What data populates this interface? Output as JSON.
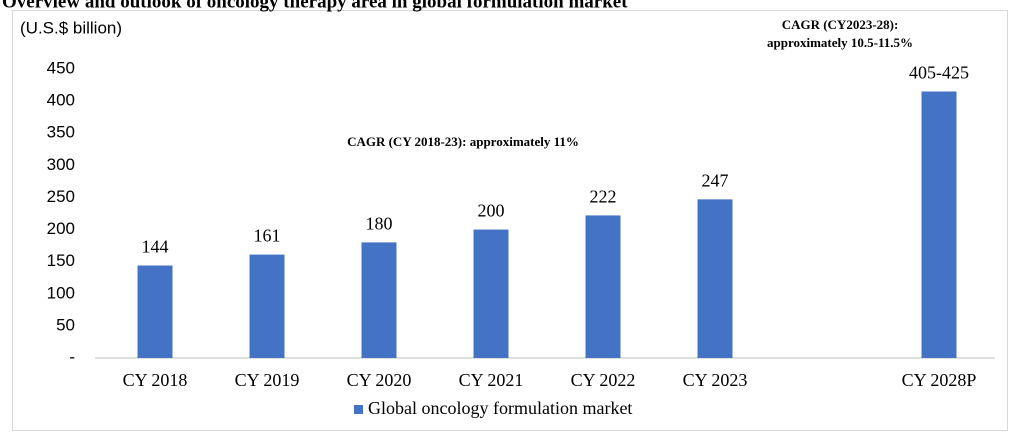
{
  "chart_data": {
    "type": "bar",
    "title": "Overview and outlook of oncology therapy area in global formulation market",
    "y_label": "(U.S.$ billion)",
    "annotations": [
      "CAGR (CY 2018-23): approximately 11%",
      "CAGR (CY2023-28):",
      "approximately 10.5-11.5%"
    ],
    "categories": [
      "CY 2018",
      "CY 2019",
      "CY 2020",
      "CY 2021",
      "CY 2022",
      "CY 2023",
      null,
      "CY 2028P"
    ],
    "series": [
      {
        "name": "Global oncology formulation market",
        "color": "#4472c4",
        "values": [
          144,
          161,
          180,
          200,
          222,
          247,
          null,
          415
        ],
        "value_labels": [
          "144",
          "161",
          "180",
          "200",
          "222",
          "247",
          null,
          "405-425"
        ]
      }
    ],
    "ylim": [
      0,
      450
    ],
    "yticks": [
      {
        "value": 0,
        "label": "-"
      },
      50,
      100,
      150,
      200,
      250,
      300,
      350,
      400,
      450
    ],
    "grid": false,
    "legend": "bottom"
  }
}
